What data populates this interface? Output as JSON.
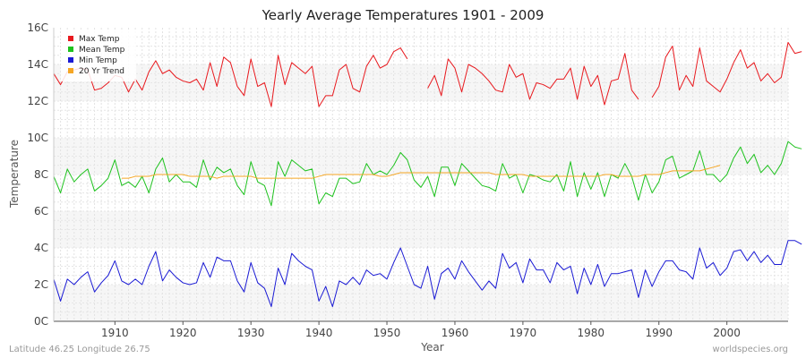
{
  "chart_data": {
    "type": "line",
    "title": "Yearly Average Temperatures 1901 - 2009",
    "xlabel": "Year",
    "ylabel": "Temperature",
    "xlim": [
      1901,
      2009
    ],
    "ylim": [
      0,
      16
    ],
    "x_ticks": [
      1910,
      1920,
      1930,
      1940,
      1950,
      1960,
      1970,
      1980,
      1990,
      2000
    ],
    "y_ticks": [
      {
        "value": 0,
        "label": "0C"
      },
      {
        "value": 2,
        "label": "2C"
      },
      {
        "value": 4,
        "label": "4C"
      },
      {
        "value": 6,
        "label": "6C"
      },
      {
        "value": 8,
        "label": "8C"
      },
      {
        "value": 10,
        "label": "10C"
      },
      {
        "value": 12,
        "label": "12C"
      },
      {
        "value": 14,
        "label": "14C"
      },
      {
        "value": 16,
        "label": "16C"
      }
    ],
    "legend_position": "top-left",
    "series": [
      {
        "name": "Max Temp",
        "color": "#e8191e",
        "x_start": 1901,
        "values": [
          13.5,
          12.9,
          13.6,
          13.7,
          13.8,
          13.7,
          12.6,
          12.7,
          13.0,
          13.4,
          13.3,
          12.5,
          13.2,
          12.6,
          13.6,
          14.2,
          13.5,
          13.7,
          13.3,
          13.1,
          13.0,
          13.2,
          12.6,
          14.1,
          12.8,
          14.4,
          14.1,
          12.8,
          12.3,
          14.3,
          12.8,
          13.0,
          11.7,
          14.5,
          12.9,
          14.1,
          13.8,
          13.5,
          13.9,
          11.7,
          12.3,
          12.3,
          13.7,
          14.0,
          12.7,
          12.5,
          13.9,
          14.5,
          13.8,
          14.0,
          14.7,
          14.9,
          14.3,
          null,
          null,
          12.7,
          13.4,
          12.3,
          14.3,
          13.8,
          12.5,
          14.0,
          13.8,
          13.5,
          13.1,
          12.6,
          12.5,
          14.0,
          13.3,
          13.5,
          12.1,
          13.0,
          12.9,
          12.7,
          13.2,
          13.2,
          13.8,
          12.1,
          13.9,
          12.8,
          13.4,
          11.8,
          13.1,
          13.2,
          14.6,
          12.6,
          12.1,
          null,
          12.2,
          12.8,
          14.4,
          15.0,
          12.6,
          13.4,
          12.8,
          14.9,
          13.1,
          12.8,
          12.5,
          13.2,
          14.1,
          14.8,
          13.8,
          14.1,
          13.1,
          13.5,
          13.0,
          13.3,
          15.2,
          14.6,
          14.7
        ]
      },
      {
        "name": "Mean Temp",
        "color": "#1ec21e",
        "x_start": 1901,
        "values": [
          7.9,
          7.0,
          8.3,
          7.6,
          8.0,
          8.3,
          7.1,
          7.4,
          7.8,
          8.8,
          7.4,
          7.6,
          7.3,
          7.9,
          7.0,
          8.3,
          8.9,
          7.6,
          8.0,
          7.6,
          7.6,
          7.3,
          8.8,
          7.7,
          8.4,
          8.1,
          8.3,
          7.4,
          6.9,
          8.7,
          7.6,
          7.4,
          6.3,
          8.7,
          7.9,
          8.8,
          8.5,
          8.2,
          8.3,
          6.4,
          7.0,
          6.8,
          7.8,
          7.8,
          7.5,
          7.6,
          8.6,
          8.0,
          8.2,
          8.0,
          8.5,
          9.2,
          8.8,
          7.7,
          7.3,
          7.9,
          6.8,
          8.4,
          8.4,
          7.4,
          8.6,
          8.2,
          7.8,
          7.4,
          7.3,
          7.1,
          8.6,
          7.8,
          8.0,
          7.0,
          8.0,
          7.9,
          7.7,
          7.6,
          8.0,
          7.1,
          8.7,
          6.8,
          8.1,
          7.2,
          8.1,
          6.8,
          8.0,
          7.8,
          8.6,
          7.9,
          6.6,
          8.0,
          7.0,
          7.6,
          8.8,
          9.0,
          7.8,
          8.0,
          8.2,
          9.3,
          8.0,
          8.0,
          7.6,
          8.0,
          8.9,
          9.5,
          8.6,
          9.1,
          8.1,
          8.5,
          8.0,
          8.6,
          9.8,
          9.5,
          9.4
        ]
      },
      {
        "name": "Min Temp",
        "color": "#1a1ad4",
        "x_start": 1901,
        "values": [
          2.3,
          1.1,
          2.3,
          2.0,
          2.4,
          2.7,
          1.6,
          2.1,
          2.5,
          3.3,
          2.2,
          2.0,
          2.3,
          2.0,
          3.0,
          3.8,
          2.2,
          2.8,
          2.4,
          2.1,
          2.0,
          2.1,
          3.2,
          2.4,
          3.5,
          3.3,
          3.3,
          2.2,
          1.6,
          3.2,
          2.1,
          1.8,
          0.8,
          2.9,
          2.0,
          3.7,
          3.3,
          3.0,
          2.8,
          1.1,
          1.9,
          0.8,
          2.2,
          2.0,
          2.4,
          2.0,
          2.8,
          2.5,
          2.6,
          2.3,
          3.2,
          4.0,
          3.0,
          2.0,
          1.8,
          3.0,
          1.2,
          2.6,
          2.9,
          2.3,
          3.3,
          2.7,
          2.2,
          1.7,
          2.2,
          1.8,
          3.7,
          2.9,
          3.2,
          2.1,
          3.4,
          2.8,
          2.8,
          2.1,
          3.2,
          2.8,
          3.0,
          1.5,
          2.9,
          2.0,
          3.1,
          1.9,
          2.6,
          2.6,
          2.7,
          2.8,
          1.3,
          2.8,
          1.9,
          2.7,
          3.3,
          3.3,
          2.8,
          2.7,
          2.3,
          4.0,
          2.9,
          3.2,
          2.5,
          2.9,
          3.8,
          3.9,
          3.3,
          3.8,
          3.2,
          3.6,
          3.1,
          3.1,
          4.4,
          4.4,
          4.2
        ]
      },
      {
        "name": "20 Yr Trend",
        "color": "#f5a623",
        "x_start": 1911,
        "values": [
          7.8,
          7.8,
          7.9,
          7.9,
          7.9,
          8.0,
          8.0,
          8.0,
          8.0,
          8.0,
          7.9,
          7.9,
          7.9,
          7.9,
          7.8,
          7.9,
          7.9,
          7.9,
          7.9,
          7.9,
          7.8,
          7.8,
          7.8,
          7.8,
          7.8,
          7.8,
          7.8,
          7.8,
          7.8,
          7.9,
          8.0,
          8.0,
          8.0,
          8.0,
          8.0,
          8.0,
          8.0,
          8.0,
          7.9,
          7.9,
          8.0,
          8.1,
          8.1,
          8.1,
          8.1,
          8.1,
          8.1,
          8.1,
          8.1,
          8.1,
          8.1,
          8.1,
          8.1,
          8.1,
          8.1,
          8.0,
          8.0,
          8.0,
          8.0,
          8.0,
          7.9,
          7.9,
          7.9,
          7.9,
          7.9,
          7.9,
          7.9,
          7.9,
          7.9,
          7.9,
          7.9,
          8.0,
          8.0,
          7.9,
          7.9,
          7.9,
          7.9,
          8.0,
          8.0,
          8.0,
          8.1,
          8.2,
          8.2,
          8.2,
          8.2,
          8.2,
          8.3,
          8.4,
          8.5
        ]
      }
    ]
  },
  "footer": {
    "left": "Latitude 46.25 Longitude 26.75",
    "right": "worldspecies.org"
  }
}
